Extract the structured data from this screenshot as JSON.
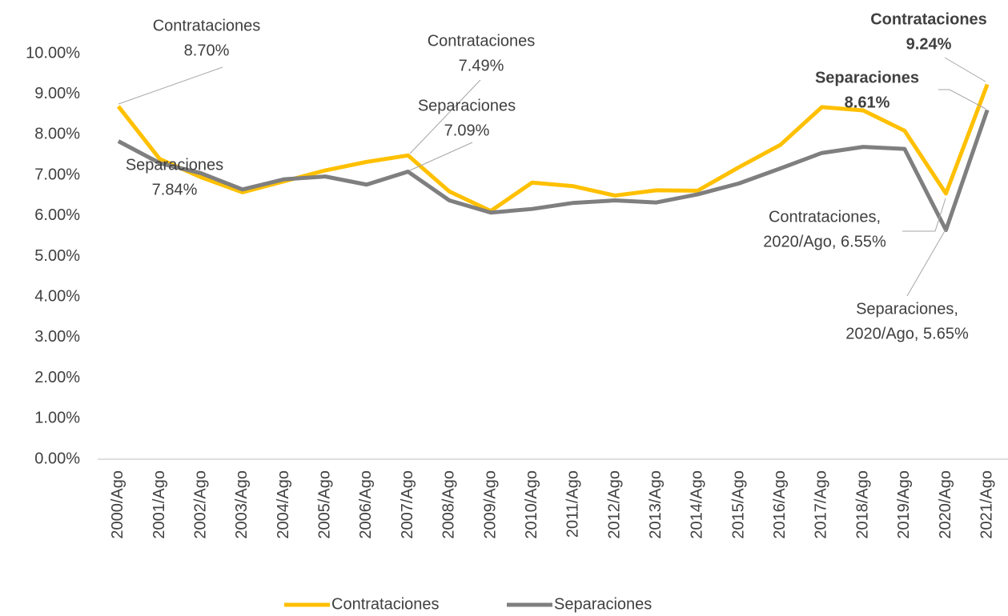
{
  "chart_data": {
    "type": "line",
    "categories": [
      "2000/Ago",
      "2001/Ago",
      "2002/Ago",
      "2003/Ago",
      "2004/Ago",
      "2005/Ago",
      "2006/Ago",
      "2007/Ago",
      "2008/Ago",
      "2009/Ago",
      "2010/Ago",
      "2011/Ago",
      "2012/Ago",
      "2013/Ago",
      "2014/Ago",
      "2015/Ago",
      "2016/Ago",
      "2017/Ago",
      "2018/Ago",
      "2019/Ago",
      "2020/Ago",
      "2021/Ago"
    ],
    "series": [
      {
        "name": "Contrataciones",
        "color": "#ffc000",
        "values": [
          8.7,
          7.4,
          6.95,
          6.58,
          6.85,
          7.12,
          7.33,
          7.49,
          6.6,
          6.12,
          6.82,
          6.73,
          6.5,
          6.63,
          6.62,
          7.2,
          7.75,
          8.68,
          8.6,
          8.1,
          6.55,
          9.24
        ],
        "value_labels": [
          [
            "Contrataciones",
            "8.70%"
          ],
          null,
          null,
          null,
          null,
          null,
          null,
          [
            "Contrataciones",
            "7.49%"
          ],
          null,
          null,
          null,
          null,
          null,
          null,
          null,
          null,
          null,
          null,
          null,
          null,
          [
            "Contrataciones,",
            "2020/Ago, 6.55%"
          ],
          [
            "Contrataciones",
            "9.24%"
          ]
        ]
      },
      {
        "name": "Separaciones",
        "color": "#7f7f7f",
        "values": [
          7.84,
          7.3,
          7.05,
          6.65,
          6.9,
          6.97,
          6.77,
          7.09,
          6.38,
          6.08,
          6.17,
          6.32,
          6.38,
          6.33,
          6.53,
          6.8,
          7.17,
          7.55,
          7.7,
          7.65,
          5.65,
          8.61
        ],
        "value_labels": [
          [
            "Separaciones",
            "7.84%"
          ],
          null,
          null,
          null,
          null,
          null,
          null,
          [
            "Separaciones",
            "7.09%"
          ],
          null,
          null,
          null,
          null,
          null,
          null,
          null,
          null,
          null,
          null,
          null,
          null,
          [
            "Separaciones,",
            "2020/Ago, 5.65%"
          ],
          [
            "Separaciones",
            "8.61%"
          ]
        ]
      }
    ],
    "ylim": [
      0,
      10
    ],
    "yticks": [
      {
        "value": 0,
        "label": "0.00%"
      },
      {
        "value": 1,
        "label": "1.00%"
      },
      {
        "value": 2,
        "label": "2.00%"
      },
      {
        "value": 3,
        "label": "3.00%"
      },
      {
        "value": 4,
        "label": "4.00%"
      },
      {
        "value": 5,
        "label": "5.00%"
      },
      {
        "value": 6,
        "label": "6.00%"
      },
      {
        "value": 7,
        "label": "7.00%"
      },
      {
        "value": 8,
        "label": "8.00%"
      },
      {
        "value": 9,
        "label": "9.00%"
      },
      {
        "value": 10,
        "label": "10.00%"
      }
    ],
    "grid": false,
    "legend": "bottom"
  }
}
